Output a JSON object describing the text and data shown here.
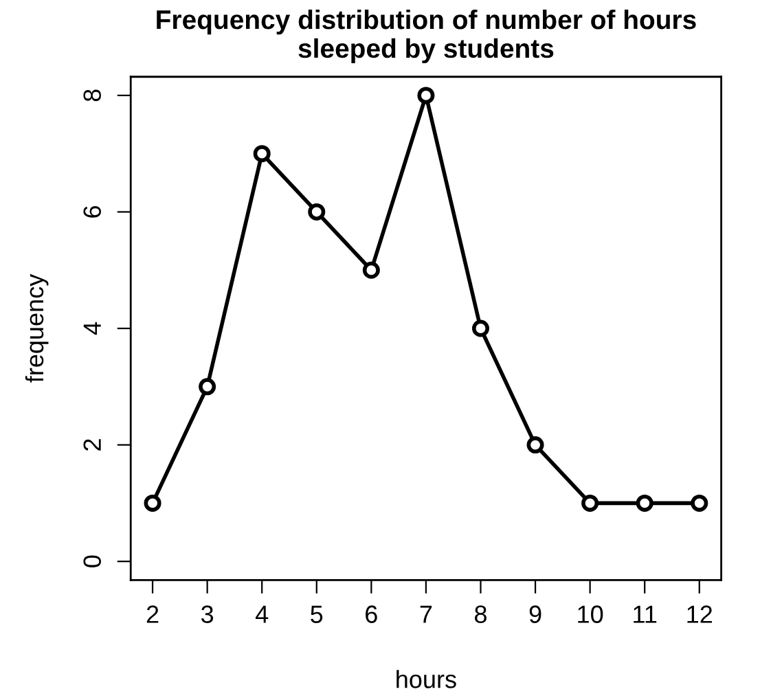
{
  "chart_data": {
    "type": "line",
    "title": "Frequency distribution of number of hours\nsleeped by students",
    "xlabel": "hours",
    "ylabel": "frequency",
    "x": [
      2,
      3,
      4,
      5,
      6,
      7,
      8,
      9,
      10,
      11,
      12
    ],
    "values": [
      1,
      3,
      7,
      6,
      5,
      8,
      4,
      2,
      1,
      1,
      1
    ],
    "color": "#000000",
    "marker": "circle",
    "line_style": "solid",
    "grid": false,
    "legend": false,
    "xlim": [
      1.6,
      12.4
    ],
    "ylim": [
      -0.32,
      8.32
    ],
    "xticks": [
      2,
      3,
      4,
      5,
      6,
      7,
      8,
      9,
      10,
      11,
      12
    ],
    "yticks": [
      0,
      2,
      4,
      6,
      8
    ]
  }
}
